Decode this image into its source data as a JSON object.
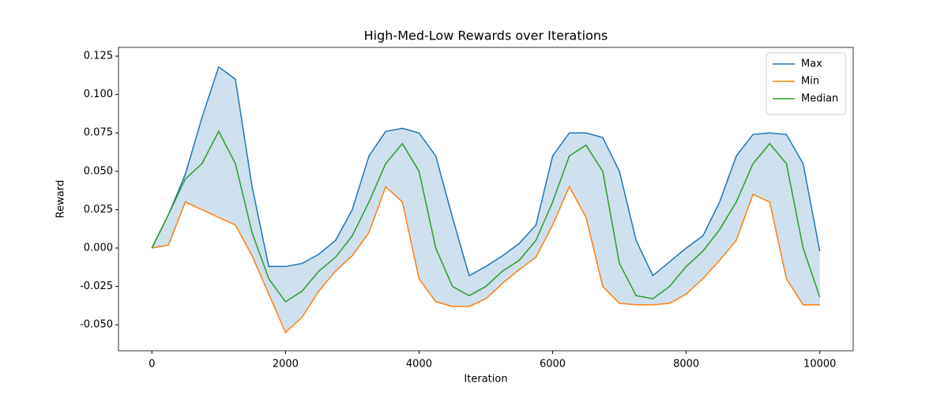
{
  "chart_data": {
    "type": "line",
    "title": "High-Med-Low Rewards over Iterations",
    "x_label": "Iteration",
    "y_label": "Reward",
    "x": [
      0,
      250,
      500,
      750,
      1000,
      1250,
      1500,
      1750,
      2000,
      2250,
      2500,
      2750,
      3000,
      3250,
      3500,
      3750,
      4000,
      4250,
      4500,
      4750,
      5000,
      5250,
      5500,
      5750,
      6000,
      6250,
      6500,
      6750,
      7000,
      7250,
      7500,
      7750,
      8000,
      8250,
      8500,
      8750,
      9000,
      9250,
      9500,
      9750,
      10000
    ],
    "series": [
      {
        "name": "Max",
        "color": "#1f77b4",
        "values": [
          0,
          0.022,
          0.048,
          0.085,
          0.118,
          0.11,
          0.04,
          -0.012,
          -0.012,
          -0.01,
          -0.004,
          0.005,
          0.025,
          0.06,
          0.076,
          0.078,
          0.075,
          0.06,
          0.02,
          -0.018,
          -0.012,
          -0.005,
          0.003,
          0.015,
          0.06,
          0.075,
          0.075,
          0.072,
          0.05,
          0.005,
          -0.018,
          -0.009,
          0.0,
          0.008,
          0.03,
          0.06,
          0.074,
          0.075,
          0.074,
          0.055,
          -0.002
        ]
      },
      {
        "name": "Min",
        "color": "#ff7f0e",
        "values": [
          0,
          0.002,
          0.03,
          0.025,
          0.02,
          0.015,
          -0.005,
          -0.03,
          -0.055,
          -0.045,
          -0.028,
          -0.015,
          -0.005,
          0.01,
          0.04,
          0.03,
          -0.02,
          -0.035,
          -0.038,
          -0.038,
          -0.033,
          -0.023,
          -0.014,
          -0.006,
          0.015,
          0.04,
          0.02,
          -0.025,
          -0.036,
          -0.037,
          -0.037,
          -0.036,
          -0.03,
          -0.02,
          -0.008,
          0.005,
          0.035,
          0.03,
          -0.02,
          -0.037,
          -0.037
        ]
      },
      {
        "name": "Median",
        "color": "#2ca02c",
        "values": [
          0,
          0.022,
          0.045,
          0.055,
          0.076,
          0.055,
          0.01,
          -0.02,
          -0.035,
          -0.028,
          -0.015,
          -0.006,
          0.008,
          0.03,
          0.055,
          0.068,
          0.05,
          0.0,
          -0.025,
          -0.031,
          -0.025,
          -0.015,
          -0.008,
          0.005,
          0.03,
          0.06,
          0.067,
          0.05,
          -0.01,
          -0.031,
          -0.033,
          -0.025,
          -0.012,
          -0.002,
          0.012,
          0.03,
          0.055,
          0.068,
          0.055,
          0.0,
          -0.032
        ]
      }
    ],
    "band_color": "#cfe0ee",
    "xlim": [
      -500,
      10500
    ],
    "ylim": [
      -0.0669,
      0.1307
    ],
    "xticks": [
      0,
      2000,
      4000,
      6000,
      8000,
      10000
    ],
    "yticks": [
      {
        "value": -0.05,
        "label": "-0.050"
      },
      -0.025,
      {
        "value": 0,
        "label": "0.000"
      },
      0.025,
      {
        "value": 0.05,
        "label": "0.050"
      },
      0.075,
      {
        "value": 0.1,
        "label": "0.100"
      },
      0.125
    ],
    "grid": false,
    "legend_position": "upper-right"
  }
}
